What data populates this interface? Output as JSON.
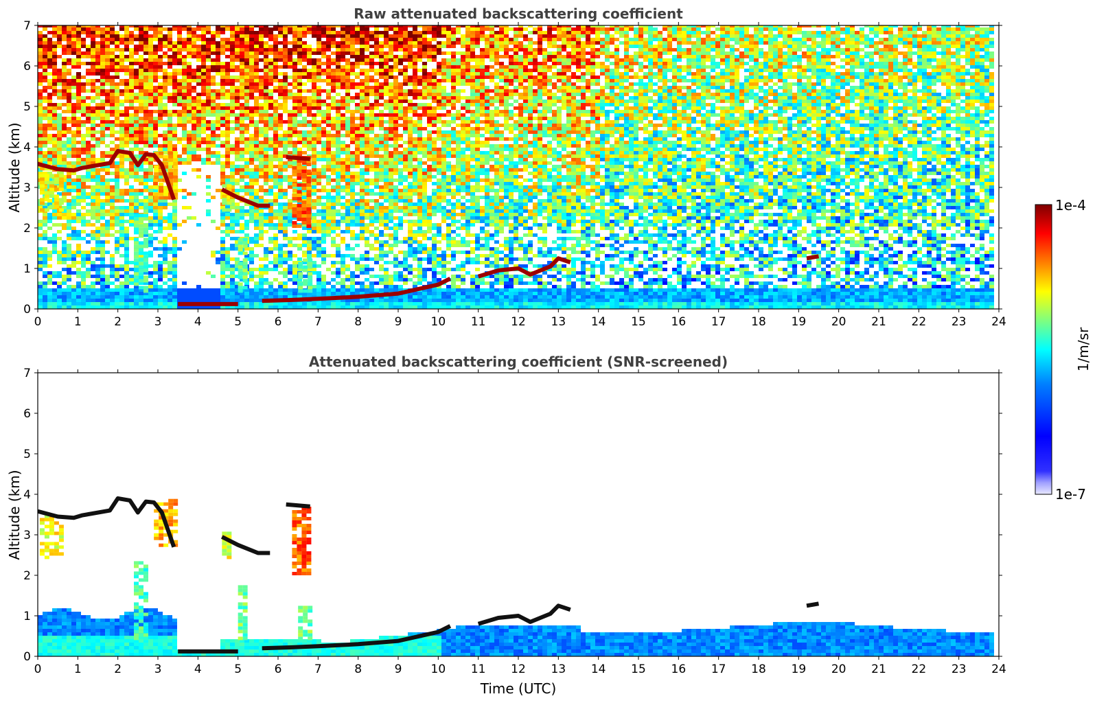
{
  "chart_data": [
    {
      "type": "heatmap",
      "title": "Raw attenuated backscattering coefficient",
      "xlabel": "",
      "ylabel": "Altitude (km)",
      "xlim": [
        0,
        24
      ],
      "ylim": [
        0,
        7
      ],
      "xticks": [
        "0",
        "1",
        "2",
        "3",
        "4",
        "5",
        "6",
        "7",
        "8",
        "9",
        "10",
        "11",
        "12",
        "13",
        "14",
        "15",
        "16",
        "17",
        "18",
        "19",
        "20",
        "21",
        "22",
        "23",
        "24"
      ],
      "yticks": [
        "0",
        "1",
        "2",
        "3",
        "4",
        "5",
        "6",
        "7"
      ],
      "data_end_hour": 23.8,
      "features": [
        {
          "layer": "boundary-layer",
          "t0": 0,
          "t1": 23.8,
          "z0": 0,
          "z1": 0.45,
          "level": 0.35
        },
        {
          "layer": "cloud-base",
          "segments": [
            [
              0,
              3.58
            ],
            [
              0.5,
              3.45
            ],
            [
              0.9,
              3.42
            ],
            [
              1.1,
              3.48
            ],
            [
              1.8,
              3.6
            ],
            [
              2.0,
              3.9
            ],
            [
              2.3,
              3.85
            ],
            [
              2.5,
              3.55
            ],
            [
              2.7,
              3.82
            ],
            [
              2.9,
              3.8
            ],
            [
              3.1,
              3.55
            ],
            [
              3.4,
              2.7
            ]
          ],
          "level": 1.0
        },
        {
          "layer": "cloud-base",
          "segments": [
            [
              3.5,
              0.12
            ],
            [
              5.0,
              0.12
            ]
          ],
          "level": 1.0
        },
        {
          "layer": "cloud-base",
          "segments": [
            [
              4.6,
              2.95
            ],
            [
              5.0,
              2.75
            ],
            [
              5.5,
              2.55
            ],
            [
              5.8,
              2.55
            ]
          ],
          "level": 1.0
        },
        {
          "layer": "cloud-base",
          "segments": [
            [
              6.2,
              3.75
            ],
            [
              6.8,
              3.7
            ]
          ],
          "level": 1.0
        },
        {
          "layer": "cloud-base",
          "segments": [
            [
              5.6,
              0.2
            ],
            [
              6.3,
              0.22
            ],
            [
              7.0,
              0.25
            ],
            [
              8.0,
              0.3
            ],
            [
              9.0,
              0.38
            ],
            [
              10.0,
              0.6
            ],
            [
              10.3,
              0.75
            ]
          ],
          "level": 1.0
        },
        {
          "layer": "cloud-base",
          "segments": [
            [
              11.0,
              0.8
            ],
            [
              11.5,
              0.95
            ],
            [
              12.0,
              1.0
            ],
            [
              12.3,
              0.85
            ],
            [
              12.8,
              1.05
            ],
            [
              13.0,
              1.25
            ],
            [
              13.3,
              1.15
            ]
          ],
          "level": 1.0
        },
        {
          "layer": "cloud-base",
          "segments": [
            [
              19.2,
              1.25
            ],
            [
              19.5,
              1.3
            ]
          ],
          "level": 1.0
        }
      ]
    },
    {
      "type": "heatmap",
      "title": "Attenuated backscattering coefficient (SNR-screened)",
      "xlabel": "Time (UTC)",
      "ylabel": "Altitude (km)",
      "xlim": [
        0,
        24
      ],
      "ylim": [
        0,
        7
      ],
      "xticks": [
        "0",
        "1",
        "2",
        "3",
        "4",
        "5",
        "6",
        "7",
        "8",
        "9",
        "10",
        "11",
        "12",
        "13",
        "14",
        "15",
        "16",
        "17",
        "18",
        "19",
        "20",
        "21",
        "22",
        "23",
        "24"
      ],
      "yticks": [
        "0",
        "1",
        "2",
        "3",
        "4",
        "5",
        "6",
        "7"
      ],
      "data_end_hour": 23.8,
      "colorbar": {
        "label": "1/m/sr",
        "min_label": "1e-7",
        "max_label": "1e-4",
        "scale": "log"
      }
    }
  ],
  "colors": {
    "jet": [
      "#00007f",
      "#0000ff",
      "#007fff",
      "#00ffff",
      "#7fff7f",
      "#ffff00",
      "#ff7f00",
      "#ff0000",
      "#7f0000"
    ],
    "low_extension": [
      "#e8e8ff",
      "#c8c8ff",
      "#a0a0ff",
      "#7070ff"
    ],
    "title": "#404040",
    "axis": "#000000"
  }
}
